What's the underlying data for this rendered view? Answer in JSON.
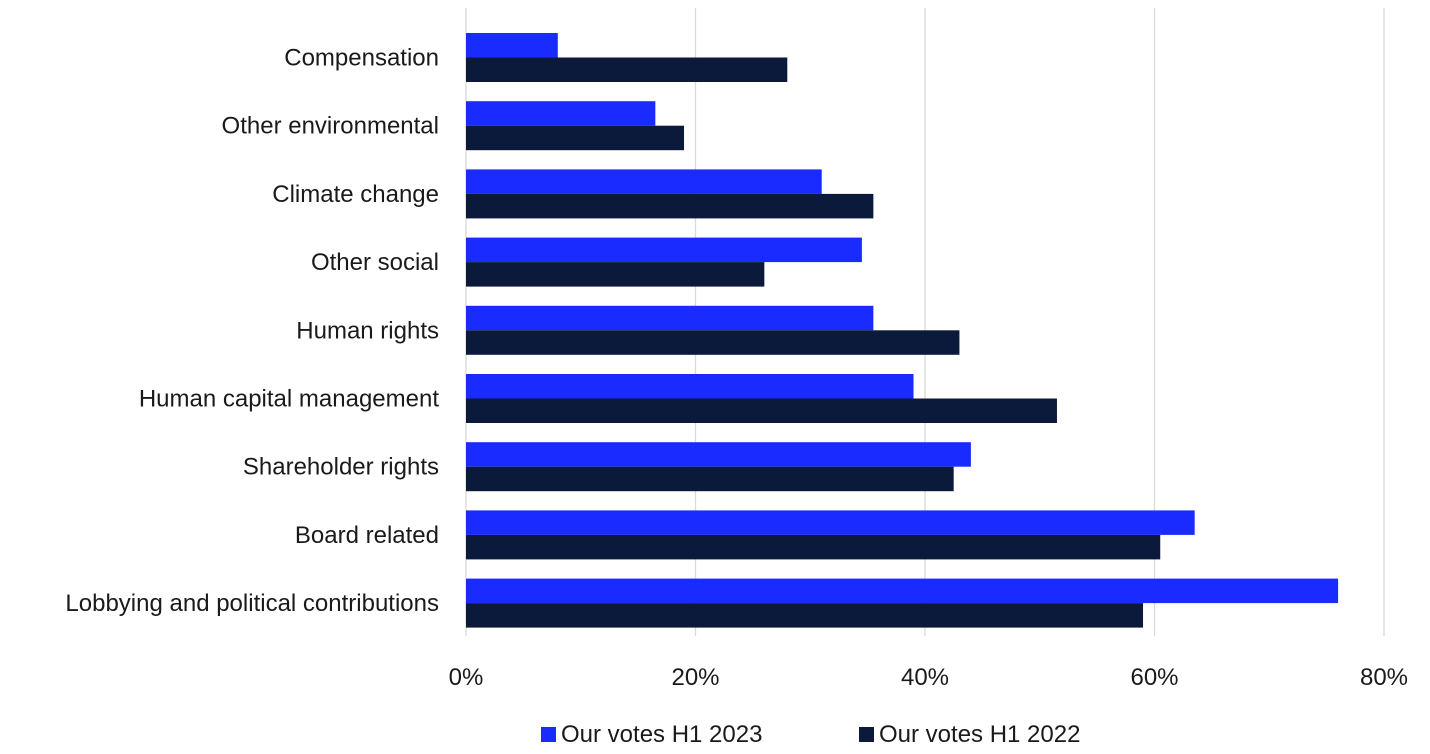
{
  "chart_data": {
    "type": "bar",
    "orientation": "horizontal",
    "categories": [
      "Compensation",
      "Other environmental",
      "Climate change",
      "Other social",
      "Human rights",
      "Human capital management",
      "Shareholder rights",
      "Board related",
      "Lobbying and political contributions"
    ],
    "series": [
      {
        "name": "Our votes H1 2023",
        "color": "#1a2bff",
        "values": [
          8,
          16.5,
          31,
          34.5,
          35.5,
          39,
          44,
          63.5,
          76
        ]
      },
      {
        "name": "Our votes H1 2022",
        "color": "#0b1a3a",
        "values": [
          28,
          19,
          35.5,
          26,
          43,
          51.5,
          42.5,
          60.5,
          59
        ]
      }
    ],
    "xlim": [
      0,
      80
    ],
    "x_ticks": [
      0,
      20,
      40,
      60,
      80
    ],
    "x_tick_labels": [
      "0%",
      "20%",
      "40%",
      "60%",
      "80%"
    ],
    "grid": true,
    "legend_position": "bottom-center"
  }
}
